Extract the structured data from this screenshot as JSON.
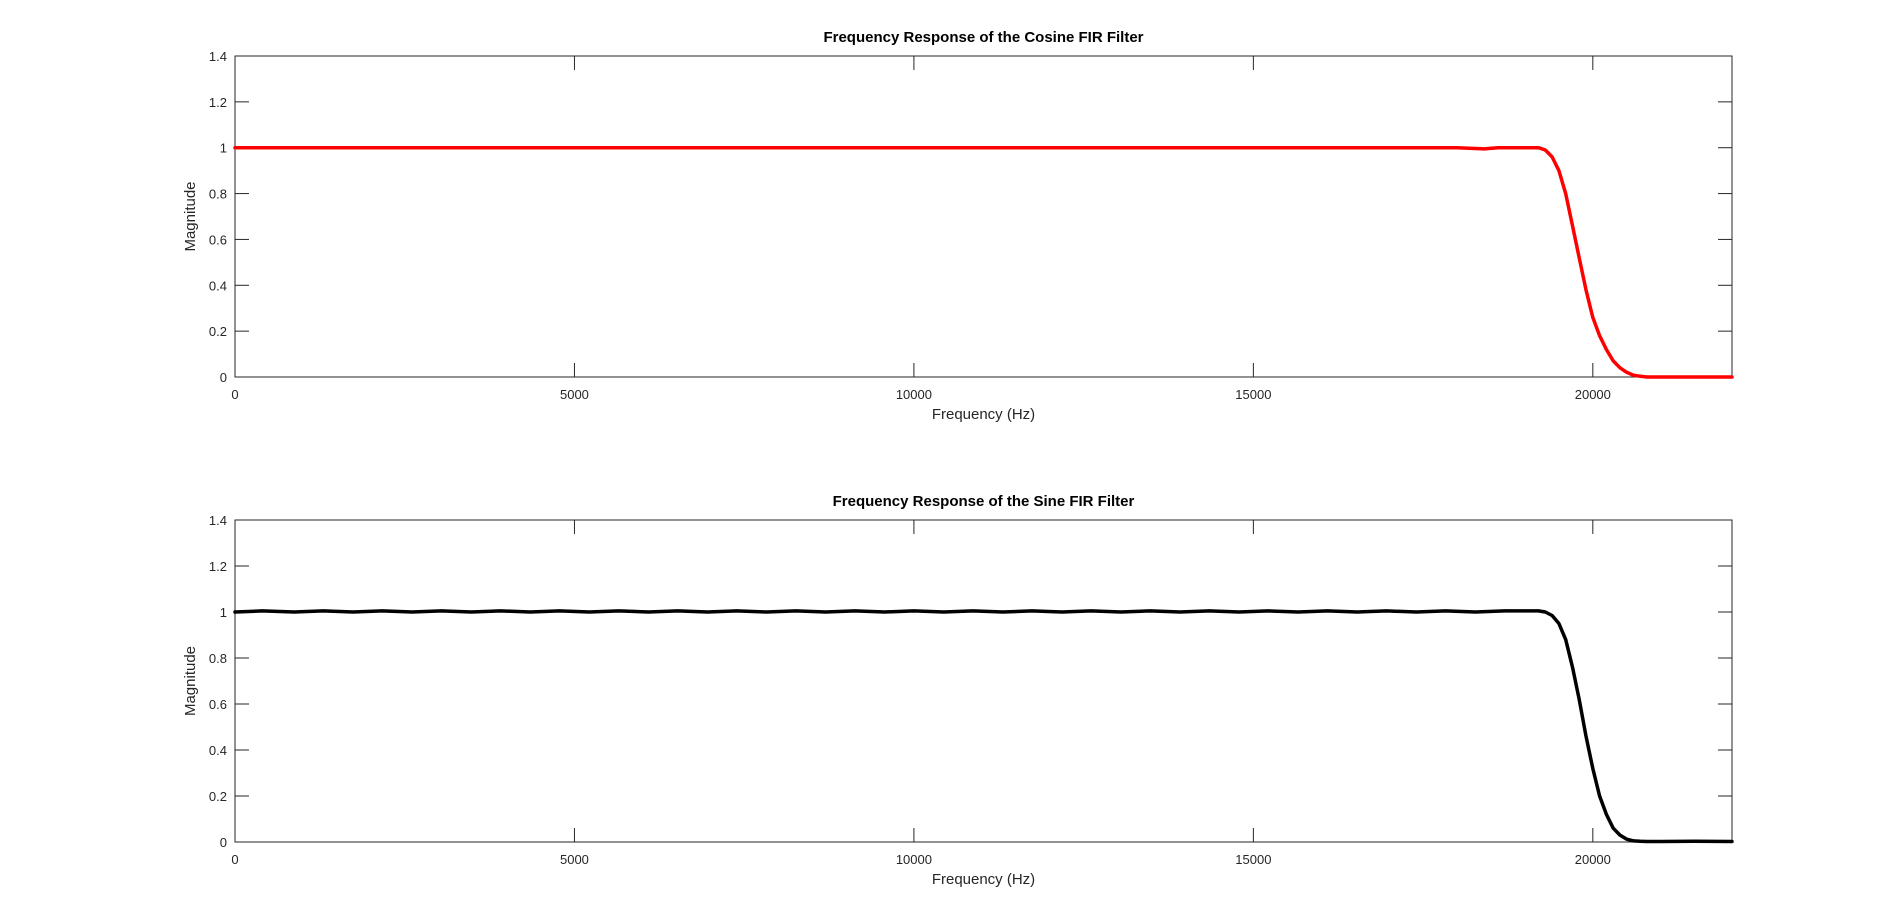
{
  "colors": {
    "background": "#ffffff",
    "axes": "#262626",
    "series_1": "#ff0000",
    "series_2": "#000000"
  },
  "chart_data": [
    {
      "type": "line",
      "title": "Frequency Response of the Cosine FIR Filter",
      "xlabel": "Frequency (Hz)",
      "ylabel": "Magnitude",
      "xlim": [
        0,
        22050
      ],
      "ylim": [
        0,
        1.4
      ],
      "xticks": [
        0,
        5000,
        10000,
        15000,
        20000
      ],
      "yticks": [
        0,
        0.2,
        0.4,
        0.6,
        0.8,
        1,
        1.2,
        1.4
      ],
      "xtick_labels": [
        "0",
        "5000",
        "10000",
        "15000",
        "20000"
      ],
      "ytick_labels": [
        "0",
        "0.2",
        "0.4",
        "0.6",
        "0.8",
        "1",
        "1.2",
        "1.4"
      ],
      "grid": false,
      "series": [
        {
          "color": "#ff0000",
          "x": [
            0,
            2000,
            4000,
            6000,
            8000,
            10000,
            12000,
            14000,
            16000,
            17000,
            17400,
            17600,
            18000,
            18400,
            18600,
            19000,
            19200,
            19300,
            19400,
            19500,
            19600,
            19700,
            19800,
            19900,
            20000,
            20100,
            20200,
            20300,
            20400,
            20500,
            20600,
            20700,
            20800,
            21000,
            21500,
            22050
          ],
          "y": [
            1,
            1,
            1,
            1,
            1,
            1,
            1,
            1,
            1,
            1,
            1.0,
            1.0,
            1.0,
            0.995,
            1.0,
            1.0,
            1.0,
            0.99,
            0.96,
            0.9,
            0.8,
            0.66,
            0.52,
            0.38,
            0.26,
            0.18,
            0.12,
            0.07,
            0.04,
            0.02,
            0.008,
            0.003,
            0,
            0,
            0,
            0
          ]
        }
      ]
    },
    {
      "type": "line",
      "title": "Frequency Response of the Sine FIR Filter",
      "xlabel": "Frequency (Hz)",
      "ylabel": "Magnitude",
      "xlim": [
        0,
        22050
      ],
      "ylim": [
        0,
        1.4
      ],
      "xticks": [
        0,
        5000,
        10000,
        15000,
        20000
      ],
      "yticks": [
        0,
        0.2,
        0.4,
        0.6,
        0.8,
        1,
        1.2,
        1.4
      ],
      "xtick_labels": [
        "0",
        "5000",
        "10000",
        "15000",
        "20000"
      ],
      "ytick_labels": [
        "0",
        "0.2",
        "0.4",
        "0.6",
        "0.8",
        "1",
        "1.2",
        "1.4"
      ],
      "grid": false,
      "series": [
        {
          "color": "#000000",
          "x": [
            0,
            400,
            870,
            1300,
            1740,
            2170,
            2610,
            3040,
            3480,
            3910,
            4350,
            4780,
            5220,
            5650,
            6090,
            6520,
            6960,
            7390,
            7830,
            8260,
            8700,
            9130,
            9570,
            10000,
            10440,
            10870,
            11310,
            11740,
            12180,
            12610,
            13050,
            13480,
            13920,
            14350,
            14790,
            15220,
            15660,
            16090,
            16530,
            16960,
            17400,
            17830,
            18270,
            18700,
            19000,
            19200,
            19300,
            19400,
            19500,
            19600,
            19700,
            19800,
            19900,
            20000,
            20100,
            20200,
            20300,
            20400,
            20500,
            20600,
            20700,
            20800,
            21000,
            21500,
            22050
          ],
          "y": [
            1,
            1.005,
            1,
            1.005,
            1,
            1.005,
            1,
            1.005,
            1,
            1.005,
            1,
            1.005,
            1,
            1.005,
            1,
            1.005,
            1,
            1.005,
            1,
            1.005,
            1,
            1.005,
            1,
            1.005,
            1,
            1.005,
            1,
            1.005,
            1,
            1.005,
            1,
            1.005,
            1,
            1.005,
            1,
            1.005,
            1,
            1.005,
            1,
            1.005,
            1,
            1.005,
            1,
            1.005,
            1.005,
            1.005,
            1.0,
            0.985,
            0.95,
            0.88,
            0.76,
            0.62,
            0.46,
            0.32,
            0.2,
            0.12,
            0.06,
            0.03,
            0.012,
            0.005,
            0.003,
            0.002,
            0.002,
            0.003,
            0.002
          ]
        }
      ]
    }
  ]
}
